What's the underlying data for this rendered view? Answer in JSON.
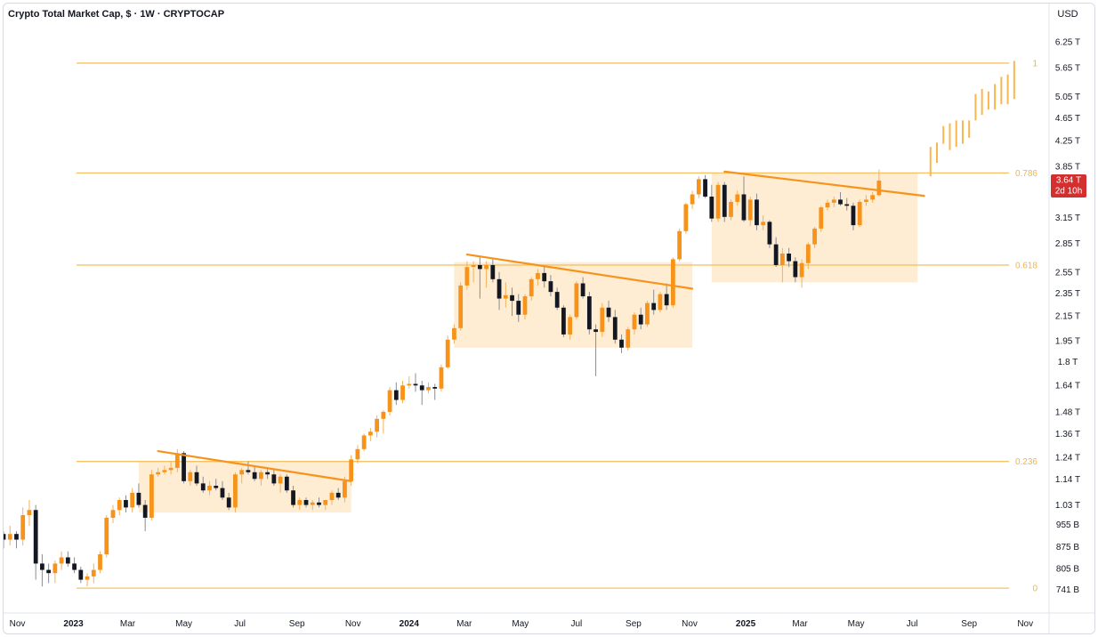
{
  "chart_data": {
    "type": "candlestick",
    "title": "Crypto Total Market Cap, $ · 1W · CRYPTOCAP",
    "currency_label": "USD",
    "y_scale": "log",
    "ylim": [
      0.72,
      6.4
    ],
    "xlim": [
      "2022-10-17",
      "2025-11-24"
    ],
    "y_ticks": [
      {
        "value": 6.25,
        "label": "6.25 T"
      },
      {
        "value": 5.65,
        "label": "5.65 T"
      },
      {
        "value": 5.05,
        "label": "5.05 T"
      },
      {
        "value": 4.65,
        "label": "4.65 T"
      },
      {
        "value": 4.25,
        "label": "4.25 T"
      },
      {
        "value": 3.85,
        "label": "3.85 T"
      },
      {
        "value": 3.15,
        "label": "3.15 T"
      },
      {
        "value": 2.85,
        "label": "2.85 T"
      },
      {
        "value": 2.55,
        "label": "2.55 T"
      },
      {
        "value": 2.35,
        "label": "2.35 T"
      },
      {
        "value": 2.15,
        "label": "2.15 T"
      },
      {
        "value": 1.95,
        "label": "1.95 T"
      },
      {
        "value": 1.8,
        "label": "1.8 T"
      },
      {
        "value": 1.64,
        "label": "1.64 T"
      },
      {
        "value": 1.48,
        "label": "1.48 T"
      },
      {
        "value": 1.36,
        "label": "1.36 T"
      },
      {
        "value": 1.24,
        "label": "1.24 T"
      },
      {
        "value": 1.14,
        "label": "1.14 T"
      },
      {
        "value": 1.03,
        "label": "1.03 T"
      },
      {
        "value": 0.955,
        "label": "955 B"
      },
      {
        "value": 0.875,
        "label": "875 B"
      },
      {
        "value": 0.805,
        "label": "805 B"
      },
      {
        "value": 0.741,
        "label": "741 B"
      }
    ],
    "x_ticks": [
      {
        "date": "2022-11-01",
        "label": "Nov",
        "major": false
      },
      {
        "date": "2023-01-01",
        "label": "2023",
        "major": true
      },
      {
        "date": "2023-03-01",
        "label": "Mar",
        "major": false
      },
      {
        "date": "2023-05-01",
        "label": "May",
        "major": false
      },
      {
        "date": "2023-07-01",
        "label": "Jul",
        "major": false
      },
      {
        "date": "2023-09-01",
        "label": "Sep",
        "major": false
      },
      {
        "date": "2023-11-01",
        "label": "Nov",
        "major": false
      },
      {
        "date": "2024-01-01",
        "label": "2024",
        "major": true
      },
      {
        "date": "2024-03-01",
        "label": "Mar",
        "major": false
      },
      {
        "date": "2024-05-01",
        "label": "May",
        "major": false
      },
      {
        "date": "2024-07-01",
        "label": "Jul",
        "major": false
      },
      {
        "date": "2024-09-01",
        "label": "Sep",
        "major": false
      },
      {
        "date": "2024-11-01",
        "label": "Nov",
        "major": false
      },
      {
        "date": "2025-01-01",
        "label": "2025",
        "major": true
      },
      {
        "date": "2025-03-01",
        "label": "Mar",
        "major": false
      },
      {
        "date": "2025-05-01",
        "label": "May",
        "major": false
      },
      {
        "date": "2025-07-01",
        "label": "Jul",
        "major": false
      },
      {
        "date": "2025-09-01",
        "label": "Sep",
        "major": false
      },
      {
        "date": "2025-11-01",
        "label": "Nov",
        "major": false
      }
    ],
    "fib_levels": [
      {
        "value": 5.75,
        "label": "1"
      },
      {
        "value": 3.75,
        "label": "0.786"
      },
      {
        "value": 2.62,
        "label": "0.618"
      },
      {
        "value": 1.22,
        "label": "0.236"
      },
      {
        "value": 0.745,
        "label": "0"
      }
    ],
    "consolidation_zones": [
      {
        "start": "2023-03-13",
        "end": "2023-10-30",
        "top": 1.22,
        "bottom": 1.0
      },
      {
        "start": "2024-02-19",
        "end": "2024-11-04",
        "top": 2.65,
        "bottom": 1.9
      },
      {
        "start": "2024-11-25",
        "end": "2025-07-07",
        "top": 3.75,
        "bottom": 2.45
      }
    ],
    "trendlines": [
      {
        "start_date": "2023-04-03",
        "start_value": 1.27,
        "end_date": "2023-10-30",
        "end_value": 1.13
      },
      {
        "start_date": "2024-03-04",
        "start_value": 2.73,
        "end_date": "2024-11-04",
        "end_value": 2.39
      },
      {
        "start_date": "2024-12-09",
        "start_value": 3.77,
        "end_date": "2025-07-14",
        "end_value": 3.43
      }
    ],
    "projection_bars": [
      {
        "date": "2025-07-21",
        "open": 3.7,
        "close": 4.15
      },
      {
        "date": "2025-07-28",
        "open": 3.9,
        "close": 4.22
      },
      {
        "date": "2025-08-04",
        "open": 4.2,
        "close": 4.5
      },
      {
        "date": "2025-08-11",
        "open": 4.1,
        "close": 4.55
      },
      {
        "date": "2025-08-18",
        "open": 4.15,
        "close": 4.6
      },
      {
        "date": "2025-08-25",
        "open": 4.2,
        "close": 4.6
      },
      {
        "date": "2025-09-01",
        "open": 4.3,
        "close": 4.6
      },
      {
        "date": "2025-09-08",
        "open": 4.6,
        "close": 5.1
      },
      {
        "date": "2025-09-15",
        "open": 4.7,
        "close": 5.2
      },
      {
        "date": "2025-09-22",
        "open": 4.8,
        "close": 5.15
      },
      {
        "date": "2025-09-29",
        "open": 4.8,
        "close": 5.3
      },
      {
        "date": "2025-10-06",
        "open": 4.9,
        "close": 5.45
      },
      {
        "date": "2025-10-13",
        "open": 4.9,
        "close": 5.5
      },
      {
        "date": "2025-10-20",
        "open": 5.0,
        "close": 5.8
      }
    ],
    "current_price": {
      "value": 3.64,
      "label": "3.64 T",
      "countdown": "2d 10h"
    },
    "weekly_candles": {
      "start_date": "2022-10-17",
      "interval_days": 7,
      "ohlc": [
        [
          0.92,
          0.93,
          0.87,
          0.9
        ],
        [
          0.9,
          0.95,
          0.88,
          0.92
        ],
        [
          0.92,
          0.93,
          0.87,
          0.9
        ],
        [
          0.9,
          1.02,
          0.88,
          0.99
        ],
        [
          0.99,
          1.05,
          0.95,
          1.01
        ],
        [
          1.01,
          1.03,
          0.77,
          0.82
        ],
        [
          0.82,
          0.85,
          0.75,
          0.8
        ],
        [
          0.8,
          0.82,
          0.76,
          0.79
        ],
        [
          0.79,
          0.83,
          0.76,
          0.82
        ],
        [
          0.82,
          0.86,
          0.8,
          0.84
        ],
        [
          0.84,
          0.86,
          0.81,
          0.82
        ],
        [
          0.82,
          0.84,
          0.79,
          0.8
        ],
        [
          0.8,
          0.81,
          0.76,
          0.77
        ],
        [
          0.77,
          0.79,
          0.75,
          0.78
        ],
        [
          0.78,
          0.82,
          0.76,
          0.8
        ],
        [
          0.8,
          0.86,
          0.79,
          0.85
        ],
        [
          0.85,
          0.99,
          0.84,
          0.98
        ],
        [
          0.98,
          1.03,
          0.96,
          1.01
        ],
        [
          1.01,
          1.06,
          0.99,
          1.05
        ],
        [
          1.05,
          1.07,
          1.0,
          1.02
        ],
        [
          1.02,
          1.1,
          1.0,
          1.08
        ],
        [
          1.08,
          1.12,
          1.02,
          1.03
        ],
        [
          1.03,
          1.05,
          0.93,
          0.98
        ],
        [
          0.98,
          1.18,
          0.97,
          1.16
        ],
        [
          1.16,
          1.19,
          1.15,
          1.17
        ],
        [
          1.17,
          1.2,
          1.16,
          1.18
        ],
        [
          1.18,
          1.22,
          1.16,
          1.19
        ],
        [
          1.19,
          1.28,
          1.17,
          1.26
        ],
        [
          1.26,
          1.27,
          1.12,
          1.13
        ],
        [
          1.13,
          1.18,
          1.11,
          1.17
        ],
        [
          1.17,
          1.2,
          1.11,
          1.12
        ],
        [
          1.12,
          1.15,
          1.08,
          1.09
        ],
        [
          1.09,
          1.13,
          1.07,
          1.11
        ],
        [
          1.11,
          1.14,
          1.09,
          1.1
        ],
        [
          1.1,
          1.13,
          1.05,
          1.06
        ],
        [
          1.06,
          1.08,
          1.01,
          1.02
        ],
        [
          1.02,
          1.17,
          1.0,
          1.16
        ],
        [
          1.16,
          1.19,
          1.12,
          1.18
        ],
        [
          1.18,
          1.22,
          1.16,
          1.17
        ],
        [
          1.17,
          1.2,
          1.13,
          1.14
        ],
        [
          1.14,
          1.18,
          1.11,
          1.17
        ],
        [
          1.17,
          1.19,
          1.14,
          1.16
        ],
        [
          1.16,
          1.18,
          1.11,
          1.12
        ],
        [
          1.12,
          1.16,
          1.08,
          1.15
        ],
        [
          1.15,
          1.16,
          1.08,
          1.09
        ],
        [
          1.09,
          1.11,
          1.02,
          1.03
        ],
        [
          1.03,
          1.06,
          1.01,
          1.05
        ],
        [
          1.05,
          1.06,
          1.02,
          1.03
        ],
        [
          1.03,
          1.05,
          1.01,
          1.04
        ],
        [
          1.04,
          1.06,
          1.02,
          1.03
        ],
        [
          1.03,
          1.05,
          1.01,
          1.05
        ],
        [
          1.05,
          1.09,
          1.03,
          1.08
        ],
        [
          1.08,
          1.1,
          1.05,
          1.06
        ],
        [
          1.06,
          1.15,
          1.04,
          1.13
        ],
        [
          1.13,
          1.25,
          1.11,
          1.23
        ],
        [
          1.23,
          1.3,
          1.21,
          1.28
        ],
        [
          1.28,
          1.36,
          1.27,
          1.35
        ],
        [
          1.35,
          1.39,
          1.32,
          1.37
        ],
        [
          1.37,
          1.46,
          1.34,
          1.44
        ],
        [
          1.44,
          1.49,
          1.36,
          1.48
        ],
        [
          1.48,
          1.63,
          1.46,
          1.61
        ],
        [
          1.61,
          1.66,
          1.52,
          1.55
        ],
        [
          1.55,
          1.67,
          1.53,
          1.64
        ],
        [
          1.64,
          1.7,
          1.62,
          1.65
        ],
        [
          1.65,
          1.72,
          1.6,
          1.64
        ],
        [
          1.64,
          1.67,
          1.52,
          1.61
        ],
        [
          1.61,
          1.66,
          1.59,
          1.63
        ],
        [
          1.63,
          1.65,
          1.55,
          1.62
        ],
        [
          1.62,
          1.78,
          1.6,
          1.76
        ],
        [
          1.76,
          1.99,
          1.75,
          1.96
        ],
        [
          1.96,
          2.08,
          1.93,
          2.05
        ],
        [
          2.05,
          2.45,
          2.03,
          2.42
        ],
        [
          2.42,
          2.66,
          2.38,
          2.6
        ],
        [
          2.6,
          2.66,
          2.45,
          2.62
        ],
        [
          2.62,
          2.7,
          2.3,
          2.58
        ],
        [
          2.58,
          2.66,
          2.4,
          2.62
        ],
        [
          2.62,
          2.68,
          2.45,
          2.48
        ],
        [
          2.48,
          2.55,
          2.2,
          2.3
        ],
        [
          2.3,
          2.45,
          2.22,
          2.33
        ],
        [
          2.33,
          2.4,
          2.15,
          2.28
        ],
        [
          2.28,
          2.34,
          2.1,
          2.16
        ],
        [
          2.16,
          2.34,
          2.12,
          2.32
        ],
        [
          2.32,
          2.5,
          2.28,
          2.48
        ],
        [
          2.48,
          2.58,
          2.42,
          2.54
        ],
        [
          2.54,
          2.62,
          2.4,
          2.46
        ],
        [
          2.46,
          2.52,
          2.32,
          2.36
        ],
        [
          2.36,
          2.4,
          2.2,
          2.22
        ],
        [
          2.22,
          2.24,
          1.98,
          2.0
        ],
        [
          2.0,
          2.16,
          1.96,
          2.14
        ],
        [
          2.14,
          2.46,
          2.12,
          2.44
        ],
        [
          2.44,
          2.5,
          2.3,
          2.32
        ],
        [
          2.32,
          2.36,
          2.0,
          2.04
        ],
        [
          2.04,
          2.08,
          1.7,
          2.02
        ],
        [
          2.02,
          2.26,
          1.98,
          2.22
        ],
        [
          2.22,
          2.28,
          2.1,
          2.14
        ],
        [
          2.14,
          2.2,
          1.93,
          1.96
        ],
        [
          1.96,
          2.0,
          1.86,
          1.9
        ],
        [
          1.9,
          2.06,
          1.88,
          2.04
        ],
        [
          2.04,
          2.18,
          2.0,
          2.16
        ],
        [
          2.16,
          2.22,
          2.04,
          2.08
        ],
        [
          2.08,
          2.28,
          2.06,
          2.26
        ],
        [
          2.26,
          2.38,
          2.16,
          2.2
        ],
        [
          2.2,
          2.36,
          2.18,
          2.34
        ],
        [
          2.34,
          2.44,
          2.2,
          2.24
        ],
        [
          2.24,
          2.7,
          2.22,
          2.68
        ],
        [
          2.68,
          3.02,
          2.66,
          2.99
        ],
        [
          2.99,
          3.34,
          2.96,
          3.32
        ],
        [
          3.32,
          3.5,
          3.26,
          3.45
        ],
        [
          3.45,
          3.7,
          3.4,
          3.66
        ],
        [
          3.66,
          3.72,
          3.4,
          3.42
        ],
        [
          3.42,
          3.58,
          3.1,
          3.14
        ],
        [
          3.14,
          3.62,
          3.1,
          3.58
        ],
        [
          3.58,
          3.62,
          3.1,
          3.16
        ],
        [
          3.16,
          3.38,
          3.12,
          3.35
        ],
        [
          3.35,
          3.5,
          3.3,
          3.45
        ],
        [
          3.45,
          3.7,
          3.1,
          3.12
        ],
        [
          3.12,
          3.42,
          3.05,
          3.38
        ],
        [
          3.38,
          3.46,
          3.0,
          3.06
        ],
        [
          3.06,
          3.18,
          3.0,
          3.1
        ],
        [
          3.1,
          3.12,
          2.8,
          2.84
        ],
        [
          2.84,
          2.92,
          2.6,
          2.62
        ],
        [
          2.62,
          2.8,
          2.45,
          2.74
        ],
        [
          2.74,
          2.8,
          2.6,
          2.66
        ],
        [
          2.66,
          2.7,
          2.45,
          2.5
        ],
        [
          2.5,
          2.68,
          2.4,
          2.64
        ],
        [
          2.64,
          2.86,
          2.58,
          2.84
        ],
        [
          2.84,
          3.04,
          2.8,
          3.02
        ],
        [
          3.02,
          3.3,
          2.98,
          3.28
        ],
        [
          3.28,
          3.38,
          3.24,
          3.34
        ],
        [
          3.34,
          3.42,
          3.28,
          3.38
        ],
        [
          3.38,
          3.48,
          3.3,
          3.32
        ],
        [
          3.32,
          3.4,
          3.24,
          3.3
        ],
        [
          3.3,
          3.34,
          3.0,
          3.06
        ],
        [
          3.06,
          3.38,
          3.04,
          3.35
        ],
        [
          3.35,
          3.44,
          3.3,
          3.38
        ],
        [
          3.38,
          3.48,
          3.34,
          3.44
        ],
        [
          3.44,
          3.8,
          3.42,
          3.64
        ]
      ]
    }
  }
}
